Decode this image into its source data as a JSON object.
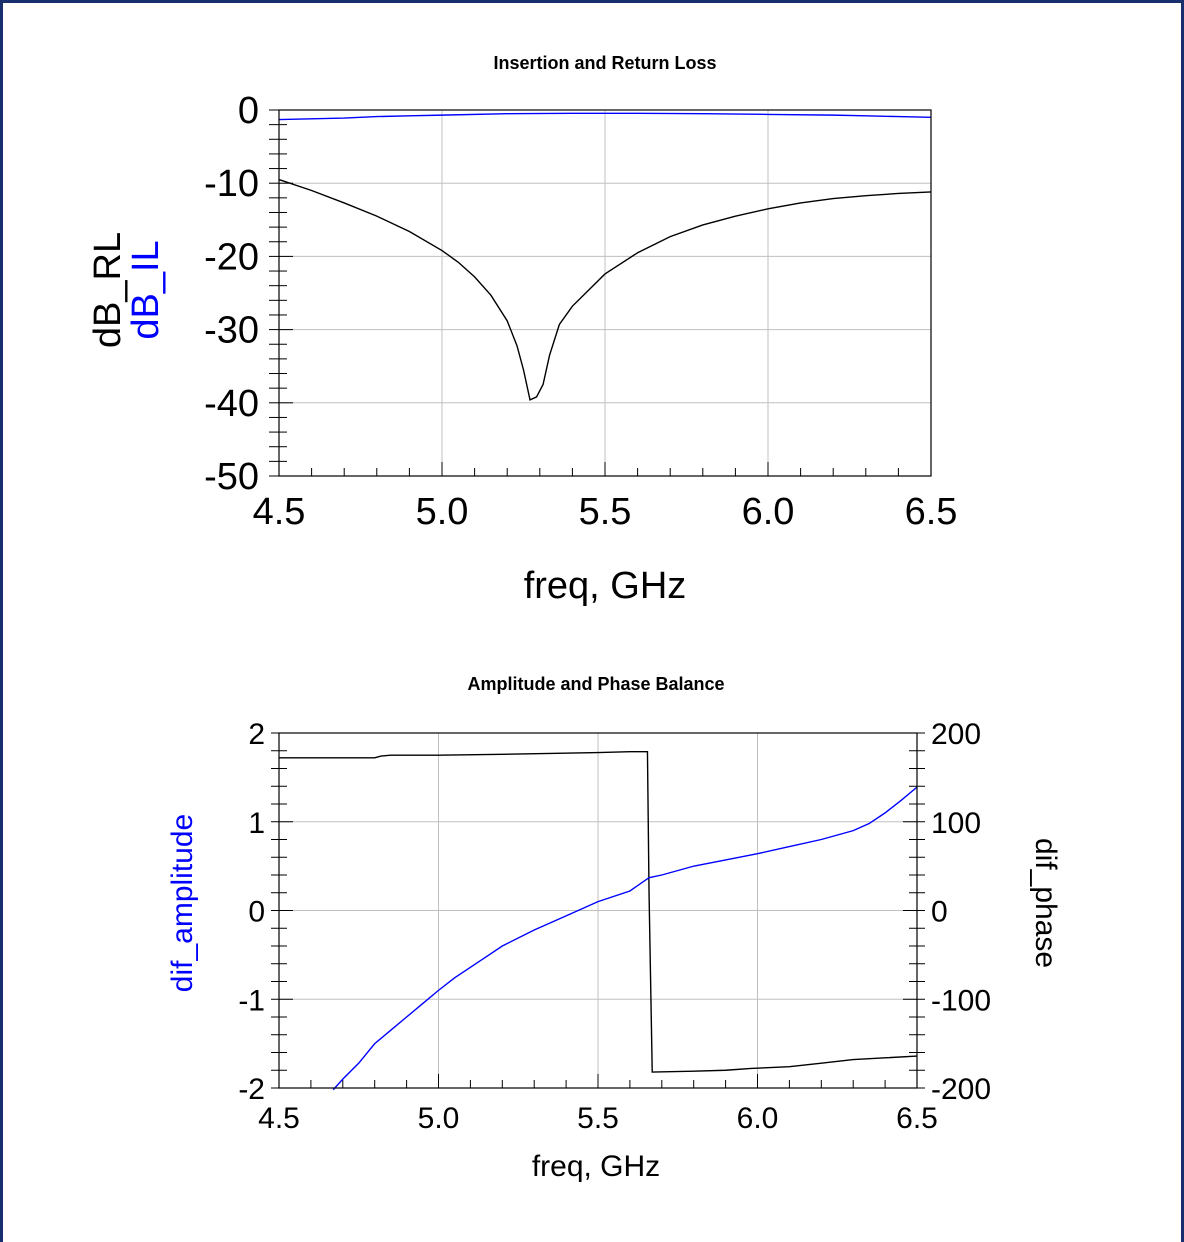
{
  "colors": {
    "frame": "#1a2f6e",
    "black_series": "#000000",
    "blue_series": "#0000ff",
    "grid": "#c0c0c0"
  },
  "chart_data": [
    {
      "type": "line",
      "title": "Insertion and Return Loss",
      "xlabel": "freq, GHz",
      "ylabel_lines": [
        {
          "text": "dB_RL",
          "color": "#000000"
        },
        {
          "text": "dB_IL",
          "color": "#0000ff"
        }
      ],
      "xlim": [
        4.5,
        6.5
      ],
      "ylim": [
        -50,
        0
      ],
      "xticks": [
        "4.5",
        "5.0",
        "5.5",
        "6.0",
        "6.5"
      ],
      "yticks": [
        "0",
        "-10",
        "-20",
        "-30",
        "-40",
        "-50"
      ],
      "grid": true,
      "series": [
        {
          "id": "rl",
          "color": "#000000",
          "x": [
            4.5,
            4.6,
            4.7,
            4.8,
            4.9,
            5.0,
            5.05,
            5.1,
            5.15,
            5.2,
            5.23,
            5.25,
            5.27,
            5.29,
            5.31,
            5.33,
            5.36,
            5.4,
            5.5,
            5.6,
            5.7,
            5.8,
            5.9,
            6.0,
            6.1,
            6.2,
            6.3,
            6.4,
            6.5
          ],
          "y": [
            -9.5,
            -11,
            -12.7,
            -14.5,
            -16.6,
            -19.2,
            -20.8,
            -22.8,
            -25.3,
            -28.8,
            -32.2,
            -35.5,
            -39.6,
            -39.2,
            -37.5,
            -33.5,
            -29.3,
            -26.8,
            -22.4,
            -19.5,
            -17.3,
            -15.7,
            -14.5,
            -13.5,
            -12.7,
            -12.1,
            -11.7,
            -11.4,
            -11.2
          ]
        },
        {
          "id": "il",
          "color": "#0000ff",
          "x": [
            4.5,
            4.6,
            4.7,
            4.8,
            4.9,
            5.0,
            5.2,
            5.4,
            5.6,
            5.8,
            6.0,
            6.2,
            6.3,
            6.4,
            6.5
          ],
          "y": [
            -1.3,
            -1.2,
            -1.1,
            -0.9,
            -0.8,
            -0.7,
            -0.5,
            -0.45,
            -0.45,
            -0.5,
            -0.6,
            -0.7,
            -0.8,
            -0.9,
            -1.0
          ]
        }
      ]
    },
    {
      "type": "line",
      "title": "Amplitude and Phase Balance",
      "xlabel": "freq, GHz",
      "ylabel_left": "dif_amplitude",
      "ylabel_right": "dif_phase",
      "xlim": [
        4.5,
        6.5
      ],
      "ylim_left": [
        -2,
        2
      ],
      "ylim_right": [
        -200,
        200
      ],
      "xticks": [
        "4.5",
        "5.0",
        "5.5",
        "6.0",
        "6.5"
      ],
      "yticks_left": [
        "2",
        "1",
        "0",
        "-1",
        "-2"
      ],
      "yticks_right": [
        "200",
        "100",
        "0",
        "-100",
        "-200"
      ],
      "grid": true,
      "series": [
        {
          "id": "dif_amplitude",
          "axis": "left",
          "color": "#0000ff",
          "x": [
            4.67,
            4.7,
            4.75,
            4.8,
            4.85,
            4.9,
            4.95,
            5.0,
            5.05,
            5.1,
            5.15,
            5.2,
            5.3,
            5.4,
            5.5,
            5.6,
            5.66,
            5.7,
            5.8,
            5.9,
            6.0,
            6.1,
            6.2,
            6.3,
            6.35,
            6.4,
            6.45,
            6.5
          ],
          "y": [
            -2.02,
            -1.9,
            -1.72,
            -1.5,
            -1.35,
            -1.2,
            -1.05,
            -0.9,
            -0.76,
            -0.64,
            -0.52,
            -0.4,
            -0.22,
            -0.06,
            0.1,
            0.22,
            0.37,
            0.4,
            0.5,
            0.57,
            0.64,
            0.72,
            0.8,
            0.9,
            0.98,
            1.1,
            1.24,
            1.39
          ]
        },
        {
          "id": "dif_phase",
          "axis": "right",
          "color": "#000000",
          "x": [
            4.5,
            4.8,
            4.82,
            4.85,
            5.0,
            5.2,
            5.35,
            5.5,
            5.6,
            5.655,
            5.66,
            5.67,
            5.8,
            5.9,
            5.98,
            6.1,
            6.2,
            6.3,
            6.4,
            6.5
          ],
          "y": [
            172,
            172,
            174,
            175,
            175,
            176,
            177,
            178,
            179,
            179,
            20,
            -182,
            -181,
            -180,
            -178,
            -176,
            -172,
            -168,
            -166,
            -164
          ]
        }
      ]
    }
  ]
}
